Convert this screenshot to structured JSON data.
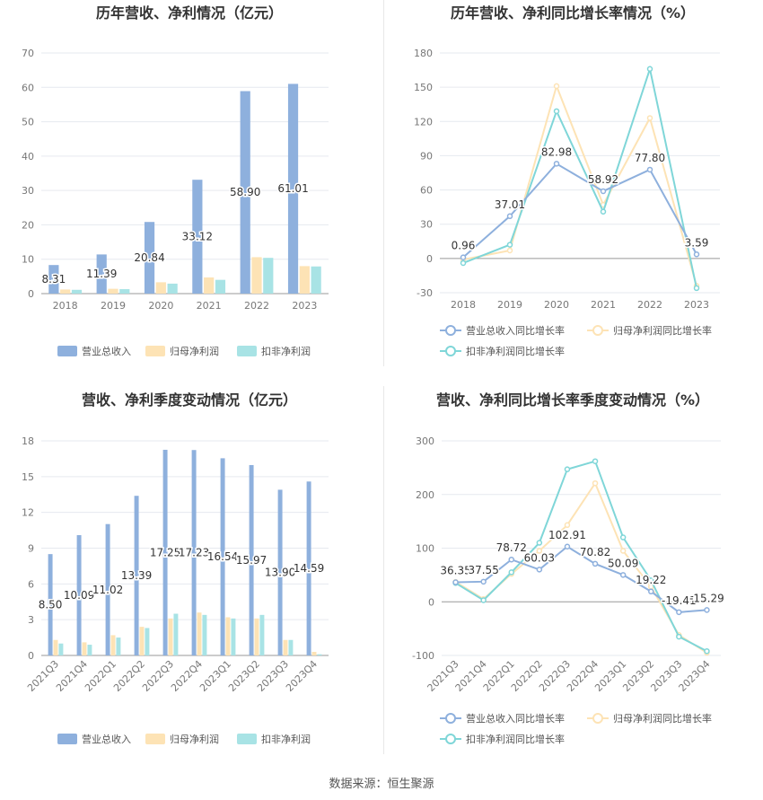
{
  "footer": {
    "source_label": "数据来源：",
    "source_name": "恒生聚源"
  },
  "legend_swatch_colors": {
    "bar": [
      "#8eb0dd",
      "#fde3b5",
      "#a8e3e5"
    ],
    "line": [
      "#8eb0dd",
      "#fde3b5",
      "#a8e3e5"
    ]
  },
  "chart_data": [
    {
      "id": "annual-bars",
      "type": "bar",
      "title": "历年营收、净利情况（亿元）",
      "categories": [
        "2018",
        "2019",
        "2020",
        "2021",
        "2022",
        "2023"
      ],
      "ylim": [
        0,
        70
      ],
      "yticks": [
        0,
        10,
        20,
        30,
        40,
        50,
        60,
        70
      ],
      "series": [
        {
          "name": "营业总收入",
          "color": "#8eb0dd",
          "values": [
            8.31,
            11.39,
            20.84,
            33.12,
            58.9,
            61.01
          ],
          "labels": [
            "8.31",
            "11.39",
            "20.84",
            "33.12",
            "58.90",
            "61.01"
          ]
        },
        {
          "name": "归母净利润",
          "color": "#fde3b5",
          "values": [
            1.2,
            1.4,
            3.3,
            4.7,
            10.6,
            8.0
          ]
        },
        {
          "name": "扣非净利润",
          "color": "#a8e3e5",
          "values": [
            1.1,
            1.3,
            2.9,
            4.0,
            10.4,
            7.9
          ]
        }
      ]
    },
    {
      "id": "annual-lines",
      "type": "line",
      "title": "历年营收、净利同比增长率情况（%）",
      "categories": [
        "2018",
        "2019",
        "2020",
        "2021",
        "2022",
        "2023"
      ],
      "ylim": [
        -30,
        180
      ],
      "yticks": [
        -30,
        0,
        30,
        60,
        90,
        120,
        150,
        180
      ],
      "series": [
        {
          "name": "营业总收入同比增长率",
          "color": "#8eb0dd",
          "values": [
            0.96,
            37.01,
            82.98,
            58.92,
            77.8,
            3.59
          ],
          "labels": [
            "0.96",
            "37.01",
            "82.98",
            "58.92",
            "77.80",
            "3.59"
          ]
        },
        {
          "name": "归母净利润同比增长率",
          "color": "#fde3b5",
          "values": [
            -1,
            7,
            151,
            47,
            123,
            -24
          ]
        },
        {
          "name": "扣非净利润同比增长率",
          "color": "#7fd6d8",
          "values": [
            -4,
            12,
            129,
            41,
            166,
            -26
          ]
        }
      ]
    },
    {
      "id": "quarterly-bars",
      "type": "bar",
      "title": "营收、净利季度变动情况（亿元）",
      "categories": [
        "2021Q3",
        "2021Q4",
        "2022Q1",
        "2022Q2",
        "2022Q3",
        "2022Q4",
        "2023Q1",
        "2023Q2",
        "2023Q3",
        "2023Q4"
      ],
      "ylim": [
        0,
        18
      ],
      "yticks": [
        0,
        3,
        6,
        9,
        12,
        15,
        18
      ],
      "series": [
        {
          "name": "营业总收入",
          "color": "#8eb0dd",
          "values": [
            8.5,
            10.09,
            11.02,
            13.39,
            17.25,
            17.23,
            16.54,
            15.97,
            13.9,
            14.59
          ],
          "labels": [
            "8.50",
            "10.09",
            "11.02",
            "13.39",
            "17.25",
            "17.23",
            "16.54",
            "15.97",
            "13.90",
            "14.59"
          ]
        },
        {
          "name": "归母净利润",
          "color": "#fde3b5",
          "values": [
            1.3,
            1.1,
            1.7,
            2.4,
            3.1,
            3.6,
            3.2,
            3.1,
            1.3,
            0.3
          ]
        },
        {
          "name": "扣非净利润",
          "color": "#a8e3e5",
          "values": [
            1.0,
            0.9,
            1.5,
            2.3,
            3.5,
            3.4,
            3.1,
            3.4,
            1.3,
            0.1
          ]
        }
      ]
    },
    {
      "id": "quarterly-lines",
      "type": "line",
      "title": "营收、净利同比增长率季度变动情况（%）",
      "categories": [
        "2021Q3",
        "2021Q4",
        "2022Q1",
        "2022Q2",
        "2022Q3",
        "2022Q4",
        "2023Q1",
        "2023Q2",
        "2023Q3",
        "2023Q4"
      ],
      "ylim": [
        -100,
        300
      ],
      "yticks": [
        -100,
        0,
        100,
        200,
        300
      ],
      "series": [
        {
          "name": "营业总收入同比增长率",
          "color": "#8eb0dd",
          "values": [
            36.35,
            37.55,
            78.72,
            60.03,
            102.91,
            70.82,
            50.09,
            19.22,
            -19.41,
            -15.29
          ],
          "labels": [
            "36.35",
            "37.55",
            "78.72",
            "60.03",
            "102.91",
            "70.82",
            "50.09",
            "19.22",
            "-19.41",
            "-15.29"
          ]
        },
        {
          "name": "归母净利润同比增长率",
          "color": "#fde3b5",
          "values": [
            37,
            5,
            52,
            95,
            143,
            221,
            95,
            28,
            -62,
            -95
          ]
        },
        {
          "name": "扣非净利润同比增长率",
          "color": "#7fd6d8",
          "values": [
            35,
            3,
            55,
            110,
            247,
            262,
            120,
            40,
            -65,
            -92
          ]
        }
      ]
    }
  ]
}
